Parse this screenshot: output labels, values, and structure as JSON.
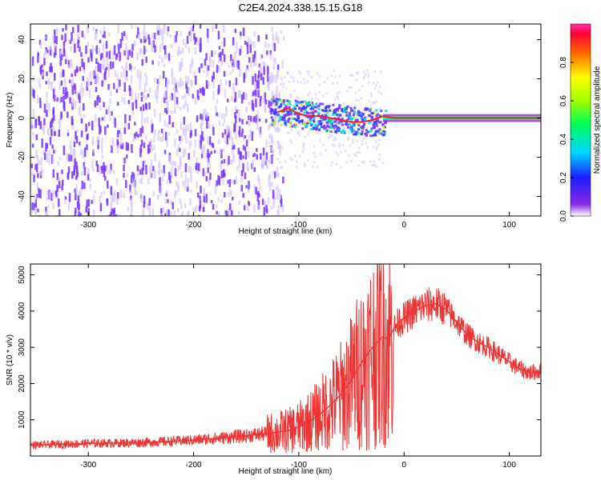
{
  "title": "C2E4.2024.338.15.15.G18",
  "colors": {
    "snr_line": "#ee3333",
    "spectrogram_scatter": "#7a33ff",
    "spectrogram_faint": "#d9c6ff"
  },
  "chart_data": [
    {
      "type": "heatmap",
      "name": "spectrogram",
      "xlabel": "Height of straight line (km)",
      "ylabel": "Frequency (Hz)",
      "xlim": [
        -355,
        130
      ],
      "ylim": [
        -50,
        48
      ],
      "xticks": [
        -300,
        -200,
        -100,
        0,
        100
      ],
      "xtick_labels": [
        "-300",
        "-200",
        "-100",
        "0",
        "100"
      ],
      "yticks": [
        -40,
        -20,
        0,
        20,
        40
      ],
      "ytick_labels": [
        "-40",
        "-20",
        "0",
        "20",
        "40"
      ],
      "colorbar": {
        "label": "Normalized spectral amplitude",
        "range": [
          0,
          1
        ],
        "ticks": [
          0.0,
          0.2,
          0.4,
          0.6,
          0.8
        ],
        "tick_labels": [
          "0.0",
          "0.2",
          "0.4",
          "0.6",
          "0.8"
        ]
      },
      "dominant_frequency": [
        {
          "x": -120,
          "y": 3
        },
        {
          "x": -110,
          "y": 5
        },
        {
          "x": -100,
          "y": 2
        },
        {
          "x": -90,
          "y": 1
        },
        {
          "x": -80,
          "y": 1
        },
        {
          "x": -70,
          "y": 0
        },
        {
          "x": -60,
          "y": -1
        },
        {
          "x": -50,
          "y": -2
        },
        {
          "x": -40,
          "y": -2
        },
        {
          "x": -30,
          "y": -1
        },
        {
          "x": -20,
          "y": 1
        },
        {
          "x": -10,
          "y": 0
        },
        {
          "x": 0,
          "y": 0
        },
        {
          "x": 20,
          "y": 0
        },
        {
          "x": 50,
          "y": 0
        },
        {
          "x": 100,
          "y": 0
        },
        {
          "x": 130,
          "y": 0
        }
      ],
      "grid": false
    },
    {
      "type": "line",
      "name": "snr",
      "xlabel": "Height of straight line (km)",
      "ylabel": "SNR (10 * v/v)",
      "xlim": [
        -355,
        130
      ],
      "ylim": [
        0,
        5300
      ],
      "xticks": [
        -300,
        -200,
        -100,
        0,
        100
      ],
      "xtick_labels": [
        "-300",
        "-200",
        "-100",
        "0",
        "100"
      ],
      "yticks": [
        1000,
        2000,
        3000,
        4000,
        5000
      ],
      "ytick_labels": [
        "1000",
        "2000",
        "3000",
        "4000",
        "5000"
      ],
      "x": [
        -355,
        -330,
        -300,
        -270,
        -240,
        -210,
        -180,
        -150,
        -130,
        -110,
        -100,
        -90,
        -80,
        -70,
        -60,
        -50,
        -40,
        -30,
        -20,
        -15,
        -10,
        -5,
        0,
        10,
        20,
        30,
        40,
        50,
        60,
        70,
        80,
        90,
        100,
        110,
        120,
        130
      ],
      "y": [
        300,
        320,
        350,
        360,
        380,
        420,
        480,
        560,
        620,
        700,
        800,
        950,
        1150,
        1400,
        1700,
        2100,
        2600,
        3000,
        3300,
        3200,
        3500,
        3700,
        3800,
        4000,
        4150,
        4200,
        4050,
        3700,
        3350,
        3150,
        3000,
        2800,
        2600,
        2400,
        2300,
        2350
      ],
      "grid": false
    }
  ]
}
